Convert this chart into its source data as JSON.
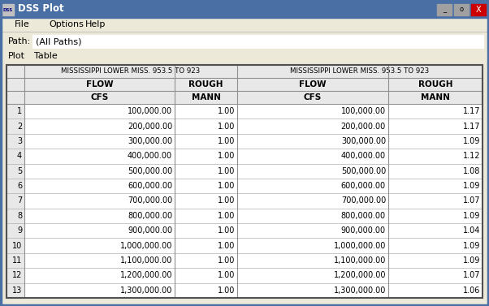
{
  "title_bar": "DSS Plot",
  "menu_items": [
    "File",
    "Options",
    "Help"
  ],
  "path_label": "Path:",
  "path_value": "(All Paths)",
  "plot_label": "Plot",
  "tab_label": "Table",
  "col1_header1": "MISSISSIPPI LOWER MISS. 953.5 TO 923",
  "col3_header1": "MISSISSIPPI LOWER MISS. 953.5 TO 923",
  "col1_header2": "FLOW",
  "col2_header2": "ROUGH",
  "col3_header2": "FLOW",
  "col4_header2": "ROUGH",
  "col1_header3": "CFS",
  "col2_header3": "MANN",
  "col3_header3": "CFS",
  "col4_header3": "MANN",
  "row_numbers": [
    1,
    2,
    3,
    4,
    5,
    6,
    7,
    8,
    9,
    10,
    11,
    12,
    13
  ],
  "pre_flow": [
    100000.0,
    200000.0,
    300000.0,
    400000.0,
    500000.0,
    600000.0,
    700000.0,
    800000.0,
    900000.0,
    1000000.0,
    1100000.0,
    1200000.0,
    1300000.0
  ],
  "pre_rough": [
    1.0,
    1.0,
    1.0,
    1.0,
    1.0,
    1.0,
    1.0,
    1.0,
    1.0,
    1.0,
    1.0,
    1.0,
    1.0
  ],
  "post_flow": [
    100000.0,
    200000.0,
    300000.0,
    400000.0,
    500000.0,
    600000.0,
    700000.0,
    800000.0,
    900000.0,
    1000000.0,
    1100000.0,
    1200000.0,
    1300000.0
  ],
  "post_rough": [
    1.17,
    1.17,
    1.09,
    1.12,
    1.08,
    1.09,
    1.07,
    1.09,
    1.04,
    1.09,
    1.09,
    1.07,
    1.06
  ],
  "bg_color": "#d4d0c8",
  "window_bg": "#ece9d8",
  "header_bg": "#e8e8e8",
  "cell_bg": "#ffffff",
  "title_bar_color": "#4a6fa5"
}
